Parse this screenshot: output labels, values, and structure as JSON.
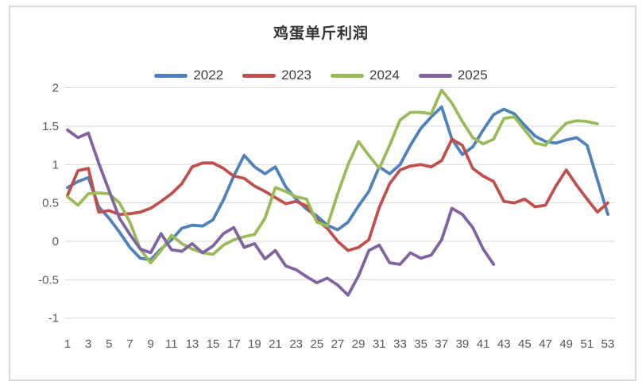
{
  "chart_data": {
    "type": "line",
    "title": "鸡蛋单斤利润",
    "legend_position": "top",
    "grid": true,
    "plot_bg": "#ffffff",
    "gridline_color": "#D9D9D9",
    "axis_text_color": "#595959",
    "y_axis": {
      "min": -1,
      "max": 2,
      "tick_values": [
        2,
        1.5,
        1,
        0.5,
        0,
        -0.5,
        -1
      ],
      "tick_labels": [
        "2",
        "1.5",
        "1",
        "0.5",
        "0",
        "-0.5",
        "-1"
      ]
    },
    "x_axis": {
      "min": 1,
      "max": 53,
      "tick_values": [
        1,
        3,
        5,
        7,
        9,
        11,
        13,
        15,
        17,
        19,
        21,
        23,
        25,
        27,
        29,
        31,
        33,
        35,
        37,
        39,
        41,
        43,
        45,
        47,
        49,
        51,
        53
      ],
      "tick_labels": [
        "1",
        "3",
        "5",
        "7",
        "9",
        "11",
        "13",
        "15",
        "17",
        "19",
        "21",
        "23",
        "25",
        "27",
        "29",
        "31",
        "33",
        "35",
        "37",
        "39",
        "41",
        "43",
        "45",
        "47",
        "49",
        "51",
        "53"
      ]
    },
    "series": [
      {
        "name": "2022",
        "color": "#4F81BD",
        "values": [
          0.7,
          0.78,
          0.83,
          0.45,
          0.3,
          0.12,
          -0.08,
          -0.22,
          -0.24,
          -0.1,
          0.02,
          0.17,
          0.21,
          0.2,
          0.28,
          0.54,
          0.85,
          1.12,
          0.97,
          0.88,
          0.97,
          0.71,
          0.55,
          0.42,
          0.33,
          0.21,
          0.15,
          0.25,
          0.46,
          0.65,
          0.97,
          0.88,
          1.0,
          1.25,
          1.47,
          1.62,
          1.75,
          1.33,
          1.13,
          1.23,
          1.45,
          1.65,
          1.72,
          1.66,
          1.51,
          1.37,
          1.3,
          1.28,
          1.32,
          1.35,
          1.25,
          0.8,
          0.35
        ]
      },
      {
        "name": "2023",
        "color": "#C0504D",
        "values": [
          0.6,
          0.92,
          0.95,
          0.38,
          0.4,
          0.35,
          0.36,
          0.38,
          0.43,
          0.52,
          0.62,
          0.75,
          0.97,
          1.02,
          1.02,
          0.95,
          0.85,
          0.82,
          0.72,
          0.65,
          0.57,
          0.49,
          0.52,
          0.46,
          0.28,
          0.17,
          0.0,
          -0.12,
          -0.08,
          0.02,
          0.44,
          0.75,
          0.93,
          0.98,
          1.0,
          0.97,
          1.05,
          1.33,
          1.25,
          0.95,
          0.85,
          0.78,
          0.52,
          0.5,
          0.55,
          0.45,
          0.47,
          0.72,
          0.93,
          0.73,
          0.55,
          0.38,
          0.5
        ]
      },
      {
        "name": "2024",
        "color": "#9BBB59",
        "values": [
          0.58,
          0.47,
          0.62,
          0.63,
          0.62,
          0.5,
          0.25,
          -0.1,
          -0.28,
          -0.12,
          0.08,
          -0.03,
          -0.1,
          -0.15,
          -0.17,
          -0.05,
          0.02,
          0.06,
          0.09,
          0.3,
          0.7,
          0.65,
          0.58,
          0.55,
          0.25,
          0.2,
          0.62,
          1.0,
          1.3,
          1.12,
          0.95,
          1.25,
          1.58,
          1.68,
          1.68,
          1.66,
          1.97,
          1.8,
          1.56,
          1.35,
          1.27,
          1.33,
          1.6,
          1.62,
          1.45,
          1.28,
          1.25,
          1.4,
          1.54,
          1.57,
          1.56,
          1.53
        ]
      },
      {
        "name": "2025",
        "color": "#8064A2",
        "values": [
          1.45,
          1.35,
          1.41,
          1.02,
          0.66,
          0.3,
          0.09,
          -0.1,
          -0.15,
          0.1,
          -0.11,
          -0.13,
          -0.03,
          -0.15,
          -0.06,
          0.1,
          0.18,
          -0.08,
          -0.03,
          -0.23,
          -0.12,
          -0.32,
          -0.37,
          -0.46,
          -0.54,
          -0.48,
          -0.57,
          -0.7,
          -0.45,
          -0.12,
          -0.05,
          -0.28,
          -0.3,
          -0.15,
          -0.22,
          -0.18,
          0.02,
          0.43,
          0.35,
          0.18,
          -0.1,
          -0.3
        ]
      }
    ]
  }
}
